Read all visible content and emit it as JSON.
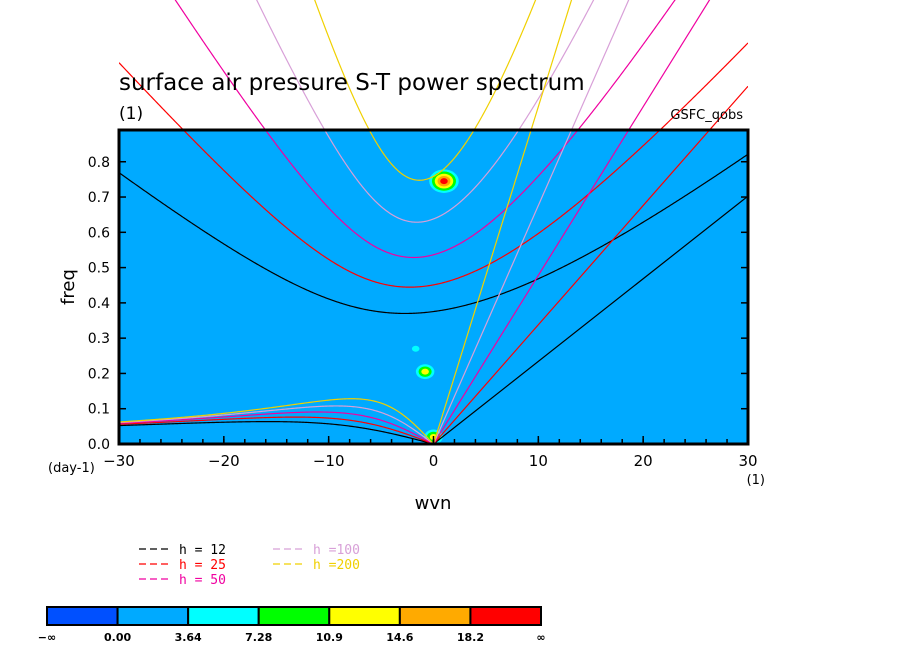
{
  "chart_data": {
    "type": "heatmap",
    "title": "surface air pressure S-T power spectrum",
    "title_units": "(1)",
    "source_label": "GSFC_qobs",
    "xlabel": "wvn",
    "ylabel": "freq",
    "x_units": "(1)",
    "y_units": "(day-1)",
    "xlim": [
      -30,
      30
    ],
    "ylim": [
      0,
      0.89
    ],
    "x_ticks": [
      -30,
      -20,
      -10,
      0,
      10,
      20,
      30
    ],
    "x_tick_labels": [
      "−30",
      "−20",
      "−10",
      "0",
      "10",
      "20",
      "30"
    ],
    "x_minor_step": 2,
    "y_ticks": [
      0,
      0.1,
      0.2,
      0.3,
      0.4,
      0.5,
      0.6,
      0.7,
      0.8
    ],
    "y_tick_labels": [
      "0.0",
      "0.1",
      "0.2",
      "0.3",
      "0.4",
      "0.5",
      "0.6",
      "0.7",
      "0.8"
    ],
    "background_level_color": "#00aaff",
    "colorbar": {
      "colors": [
        "#0050ff",
        "#00aaff",
        "#00ffff",
        "#00ff00",
        "#ffff00",
        "#ffaa00",
        "#ff0000"
      ],
      "labels": [
        "−∞",
        "0.00",
        "3.64",
        "7.28",
        "10.9",
        "14.6",
        "18.2",
        "∞"
      ]
    },
    "spectral_peaks": [
      {
        "wvn": 1,
        "freq": 0.745,
        "level_index": 6
      },
      {
        "wvn": -0.8,
        "freq": 0.205,
        "level_index": 4
      },
      {
        "wvn": -1.7,
        "freq": 0.27,
        "level_index": 2
      },
      {
        "wvn": 0,
        "freq": 0.02,
        "level_index": 4
      }
    ],
    "dispersion_curves": [
      {
        "name": "h = 12",
        "h": 12,
        "color": "#000000"
      },
      {
        "name": "h = 25",
        "h": 25,
        "color": "#ff0000"
      },
      {
        "name": "h = 50",
        "h": 50,
        "color": "#f000a0"
      },
      {
        "name": "h =100",
        "h": 100,
        "color": "#d8a0d8"
      },
      {
        "name": "h =200",
        "h": 200,
        "color": "#f0d000"
      }
    ]
  }
}
